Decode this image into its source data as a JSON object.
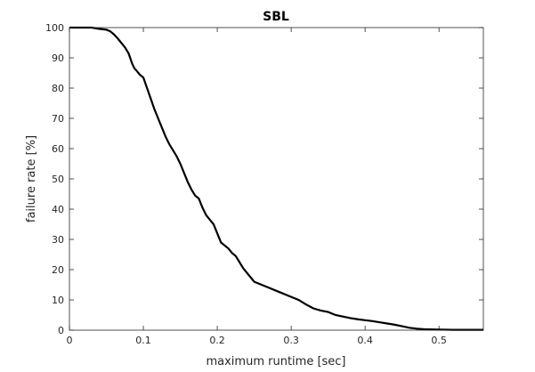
{
  "chart_data": {
    "type": "line",
    "title": "SBL",
    "xlabel": "maximum runtime [sec]",
    "ylabel": "failure rate [%]",
    "xlim": [
      0,
      0.56
    ],
    "ylim": [
      0,
      100
    ],
    "x_ticks": [
      0,
      0.1,
      0.2,
      0.3,
      0.4,
      0.5
    ],
    "x_tick_labels": [
      "0",
      "0.1",
      "0.2",
      "0.3",
      "0.4",
      "0.5"
    ],
    "y_ticks": [
      0,
      10,
      20,
      30,
      40,
      50,
      60,
      70,
      80,
      90,
      100
    ],
    "y_tick_labels": [
      "0",
      "10",
      "20",
      "30",
      "40",
      "50",
      "60",
      "70",
      "80",
      "90",
      "100"
    ],
    "grid": false,
    "series": [
      {
        "color": "#000000",
        "x": [
          0,
          0.03,
          0.04,
          0.05,
          0.055,
          0.06,
          0.065,
          0.07,
          0.075,
          0.08,
          0.085,
          0.088,
          0.09,
          0.095,
          0.1,
          0.105,
          0.11,
          0.115,
          0.12,
          0.125,
          0.13,
          0.135,
          0.14,
          0.145,
          0.15,
          0.155,
          0.16,
          0.165,
          0.17,
          0.175,
          0.18,
          0.185,
          0.19,
          0.195,
          0.2,
          0.205,
          0.21,
          0.215,
          0.22,
          0.225,
          0.23,
          0.235,
          0.24,
          0.245,
          0.25,
          0.26,
          0.27,
          0.28,
          0.29,
          0.3,
          0.31,
          0.32,
          0.33,
          0.34,
          0.35,
          0.36,
          0.37,
          0.38,
          0.39,
          0.4,
          0.41,
          0.42,
          0.43,
          0.44,
          0.45,
          0.46,
          0.47,
          0.48,
          0.5,
          0.52,
          0.56
        ],
        "y": [
          100,
          100,
          99.6,
          99.3,
          98.8,
          97.8,
          96.5,
          95,
          93.5,
          91.5,
          88,
          86.5,
          86,
          84.5,
          83.5,
          80,
          76.5,
          73,
          70,
          67,
          64,
          61.5,
          59.5,
          57.5,
          55,
          52,
          49,
          46.5,
          44.5,
          43.5,
          40.5,
          38,
          36.5,
          35,
          32,
          29,
          28,
          27,
          25.5,
          24.5,
          22.5,
          20.5,
          19,
          17.5,
          16,
          15,
          14,
          13,
          12,
          11,
          10,
          8.5,
          7.2,
          6.5,
          6,
          5,
          4.5,
          4,
          3.6,
          3.3,
          3,
          2.6,
          2.2,
          1.8,
          1.3,
          0.8,
          0.5,
          0.3,
          0.2,
          0.1,
          0.1
        ]
      }
    ]
  }
}
